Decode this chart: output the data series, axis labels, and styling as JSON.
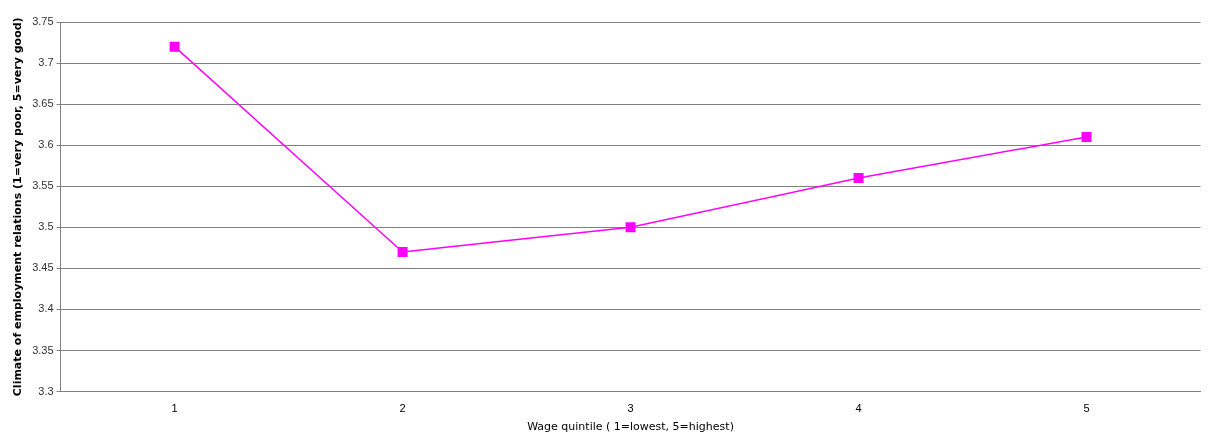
{
  "chart_data": {
    "type": "line",
    "xlabel": "Wage quintile ( 1=lowest, 5=highest)",
    "ylabel": "Climate of employment relations (1=very poor, 5=very good)",
    "categories": [
      "1",
      "2",
      "3",
      "4",
      "5"
    ],
    "series": [
      {
        "color": "#ff00ff",
        "values": [
          3.72,
          3.47,
          3.5,
          3.56,
          3.61
        ]
      }
    ],
    "ylim": [
      3.3,
      3.75
    ],
    "yticks": [
      3.3,
      3.35,
      3.4,
      3.45,
      3.5,
      3.55,
      3.6,
      3.65,
      3.7,
      3.75
    ],
    "grid": "y",
    "legend": false,
    "marker": "square",
    "line_style": "solid"
  }
}
